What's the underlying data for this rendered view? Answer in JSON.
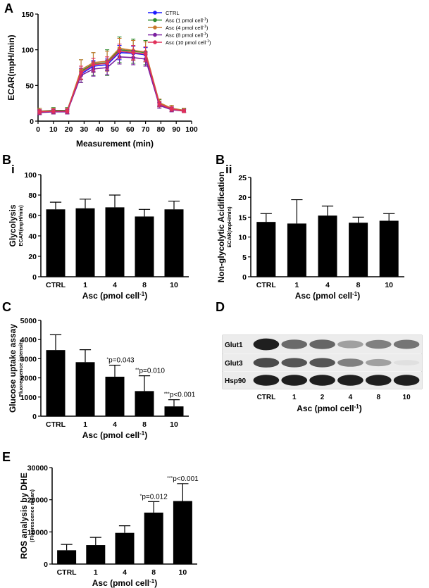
{
  "panel_letters": {
    "A": "A",
    "B": "B",
    "Bi": "i",
    "Bii": "ii",
    "C": "C",
    "D": "D",
    "E": "E"
  },
  "chart_data": [
    {
      "id": "A",
      "type": "line",
      "xlabel": "Measurement (min)",
      "ylabel": "ECAR(mpH/min)",
      "xlim": [
        0,
        100
      ],
      "ylim": [
        0,
        150
      ],
      "xticks": [
        0,
        10,
        20,
        30,
        40,
        50,
        60,
        70,
        80,
        90,
        100
      ],
      "yticks": [
        0,
        50,
        100,
        150
      ],
      "x": [
        1,
        10,
        19,
        28,
        36,
        45,
        53,
        62,
        70,
        79,
        87,
        95
      ],
      "series": [
        {
          "name": "CTRL",
          "color": "#1a1aff",
          "values": [
            13,
            14,
            14,
            66,
            77,
            79,
            96,
            95,
            93,
            24,
            17,
            15
          ],
          "err": [
            3,
            3,
            3,
            8,
            8,
            8,
            10,
            10,
            10,
            4,
            3,
            2
          ]
        },
        {
          "name": "Asc (1 pmol cell⁻¹)",
          "sup_prefix": "Asc (1 pmol cell",
          "sup": "-1",
          "sup_suffix": ")",
          "color": "#2e8b2e",
          "values": [
            14,
            15,
            15,
            70,
            80,
            82,
            100,
            98,
            96,
            25,
            18,
            15
          ],
          "err": [
            4,
            4,
            4,
            16,
            16,
            18,
            18,
            17,
            17,
            5,
            4,
            3
          ]
        },
        {
          "name": "Asc (4 pmol cell⁻¹)",
          "sup_prefix": "Asc (4 pmol cell",
          "sup": "-1",
          "sup_suffix": ")",
          "color": "#c87a2e",
          "values": [
            14,
            14,
            14,
            72,
            82,
            84,
            102,
            99,
            97,
            26,
            18,
            15
          ],
          "err": [
            4,
            4,
            4,
            14,
            14,
            14,
            14,
            14,
            14,
            5,
            4,
            3
          ]
        },
        {
          "name": "Asc (8 pmol cell⁻¹)",
          "sup_prefix": "Asc (8 pmol cell",
          "sup": "-1",
          "sup_suffix": ")",
          "color": "#7a1fa0",
          "values": [
            12,
            13,
            13,
            64,
            73,
            75,
            90,
            89,
            87,
            22,
            16,
            14
          ],
          "err": [
            3,
            3,
            3,
            10,
            10,
            10,
            10,
            10,
            10,
            4,
            3,
            2
          ]
        },
        {
          "name": "Asc (10 pmol cell⁻¹)",
          "sup_prefix": "Asc (10 pmol cell",
          "sup": "-1",
          "sup_suffix": ")",
          "color": "#e0305a",
          "values": [
            13,
            14,
            14,
            68,
            79,
            81,
            98,
            96,
            94,
            24,
            17,
            14
          ],
          "err": [
            3,
            3,
            3,
            9,
            9,
            9,
            10,
            10,
            10,
            4,
            3,
            2
          ]
        }
      ]
    },
    {
      "id": "Bi",
      "type": "bar",
      "categories": [
        "CTRL",
        "1",
        "4",
        "8",
        "10"
      ],
      "values": [
        66,
        67,
        68,
        59,
        66
      ],
      "err": [
        7,
        9,
        12,
        7,
        8
      ],
      "ylim": [
        0,
        100
      ],
      "yticks": [
        0,
        20,
        40,
        60,
        80,
        100
      ],
      "ylabel": "Glycolysis",
      "ysublabel": "ECAR(mpH/min)",
      "xlabel_prefix": "Asc (pmol cell",
      "xlabel_sup": "-1",
      "xlabel_suffix": ")"
    },
    {
      "id": "Bii",
      "type": "bar",
      "categories": [
        "CTRL",
        "1",
        "4",
        "8",
        "10"
      ],
      "values": [
        13.8,
        13.4,
        15.4,
        13.6,
        14.1
      ],
      "err": [
        2.1,
        6.0,
        2.4,
        1.4,
        1.8
      ],
      "ylim": [
        0,
        25
      ],
      "yticks": [
        0,
        5,
        10,
        15,
        20,
        25
      ],
      "ylabel": "Non-glycolytic Acidification",
      "ysublabel": "ECAR(mpH/min)",
      "xlabel_prefix": "Asc (pmol cell",
      "xlabel_sup": "-1",
      "xlabel_suffix": ")"
    },
    {
      "id": "C",
      "type": "bar",
      "categories": [
        "CTRL",
        "1",
        "4",
        "8",
        "10"
      ],
      "values": [
        3450,
        2820,
        2060,
        1310,
        510
      ],
      "err": [
        800,
        650,
        600,
        800,
        350
      ],
      "ylim": [
        0,
        5000
      ],
      "yticks": [
        0,
        1000,
        2000,
        3000,
        4000,
        5000
      ],
      "ylabel": "Glucose uptake assay",
      "ysublabel": "Fluorescence intensity",
      "xlabel_prefix": "Asc (pmol cell",
      "xlabel_sup": "-1",
      "xlabel_suffix": ")",
      "annotations": [
        "",
        "",
        "*p=0.043",
        "**p=0.010",
        "***p<0.001"
      ]
    },
    {
      "id": "E",
      "type": "bar",
      "categories": [
        "CTRL",
        "1",
        "4",
        "8",
        "10"
      ],
      "values": [
        4300,
        5900,
        9700,
        16000,
        19600
      ],
      "err": [
        1800,
        2400,
        2200,
        3400,
        5400
      ],
      "ylim": [
        0,
        30000
      ],
      "yticks": [
        0,
        10000,
        20000,
        30000
      ],
      "ylabel": "ROS analysis by DHE",
      "ysublabel": "(Fluorescence mean)",
      "xlabel_prefix": "Asc (pmol cell",
      "xlabel_sup": "-1",
      "xlabel_suffix": ")",
      "annotations": [
        "",
        "",
        "",
        "*p=0.012",
        "***p<0.001"
      ]
    }
  ],
  "western_blot": {
    "bands": [
      "Glut1",
      "Glut3",
      "Hsp90"
    ],
    "lanes": [
      "CTRL",
      "1",
      "2",
      "4",
      "8",
      "10"
    ],
    "intensity": {
      "Glut1": [
        0.95,
        0.6,
        0.62,
        0.35,
        0.5,
        0.55
      ],
      "Glut3": [
        0.75,
        0.7,
        0.7,
        0.5,
        0.35,
        0.05
      ],
      "Hsp90": [
        0.95,
        0.95,
        0.95,
        0.95,
        0.95,
        0.95
      ]
    },
    "xlabel_prefix": "Asc  (pmol cell",
    "xlabel_sup": "-1",
    "xlabel_suffix": ")"
  }
}
